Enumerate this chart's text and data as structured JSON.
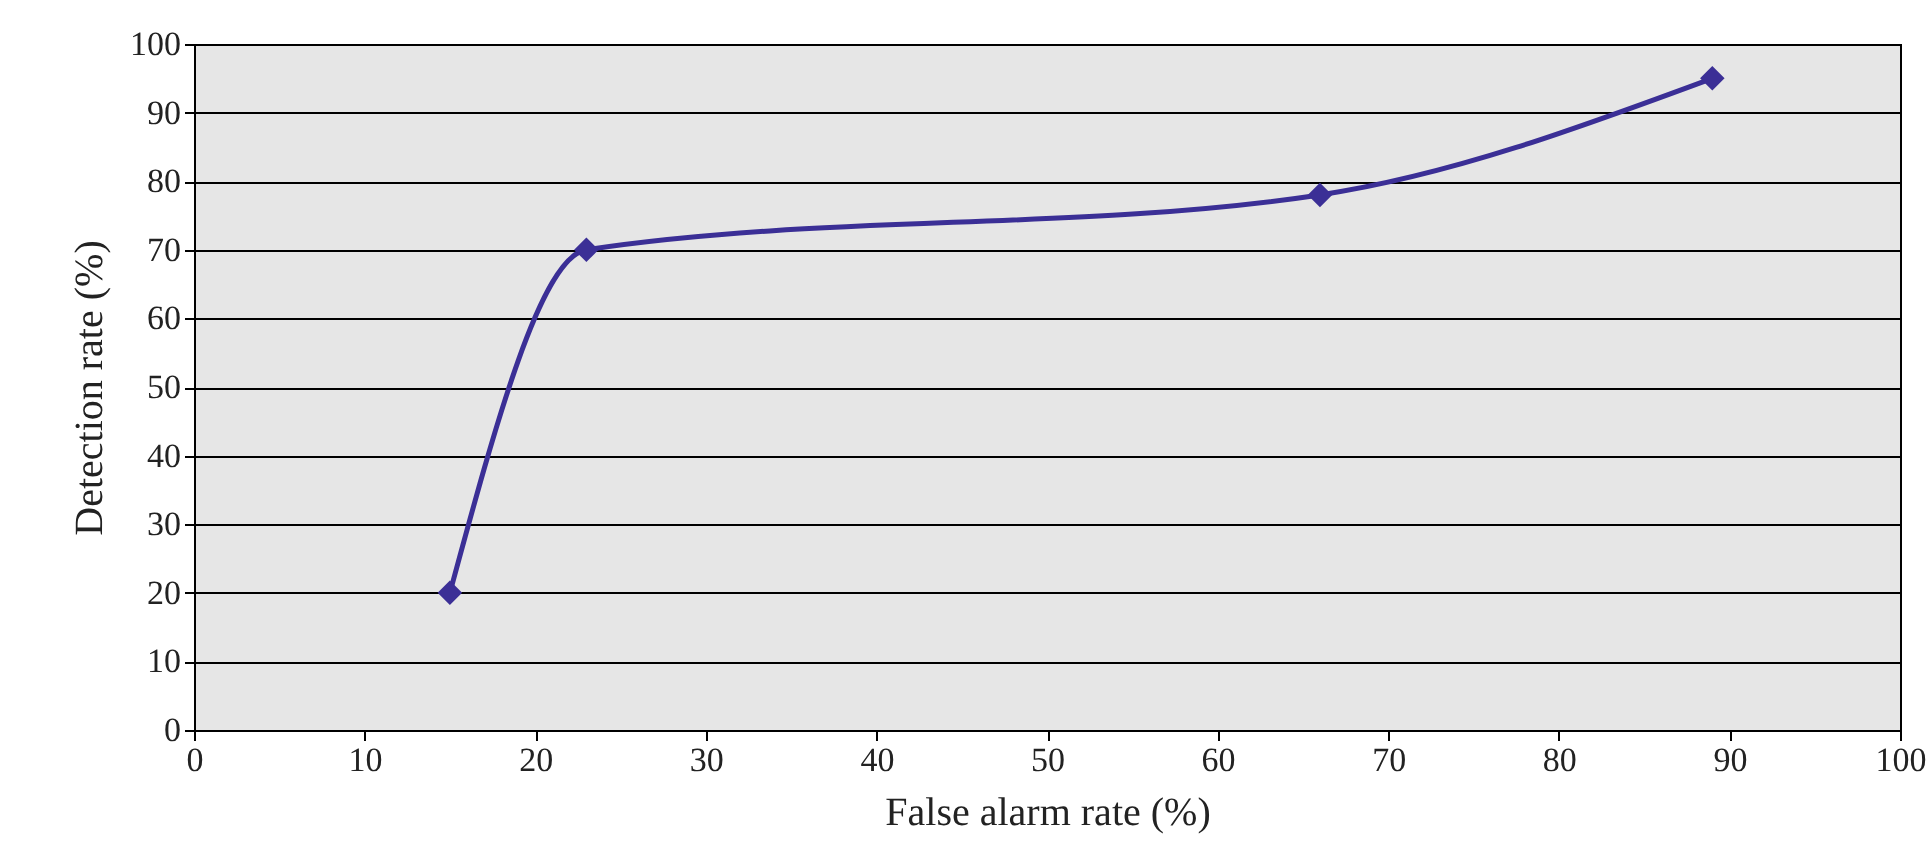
{
  "chart_data": {
    "type": "line",
    "xlabel": "False alarm rate (%)",
    "ylabel": "Detection rate (%)",
    "x": [
      15,
      23,
      66,
      89
    ],
    "series": [
      {
        "color": "#3b2f96",
        "values": [
          20,
          70,
          78,
          95
        ]
      }
    ],
    "xlim": [
      0,
      100
    ],
    "xticks": [
      0,
      10,
      20,
      30,
      40,
      50,
      60,
      70,
      80,
      90,
      100
    ],
    "ylim": [
      0,
      100
    ],
    "yticks": [
      0,
      10,
      20,
      30,
      40,
      50,
      60,
      70,
      80,
      90,
      100
    ],
    "grid": "y",
    "marker": "diamond",
    "line_style": "solid"
  }
}
